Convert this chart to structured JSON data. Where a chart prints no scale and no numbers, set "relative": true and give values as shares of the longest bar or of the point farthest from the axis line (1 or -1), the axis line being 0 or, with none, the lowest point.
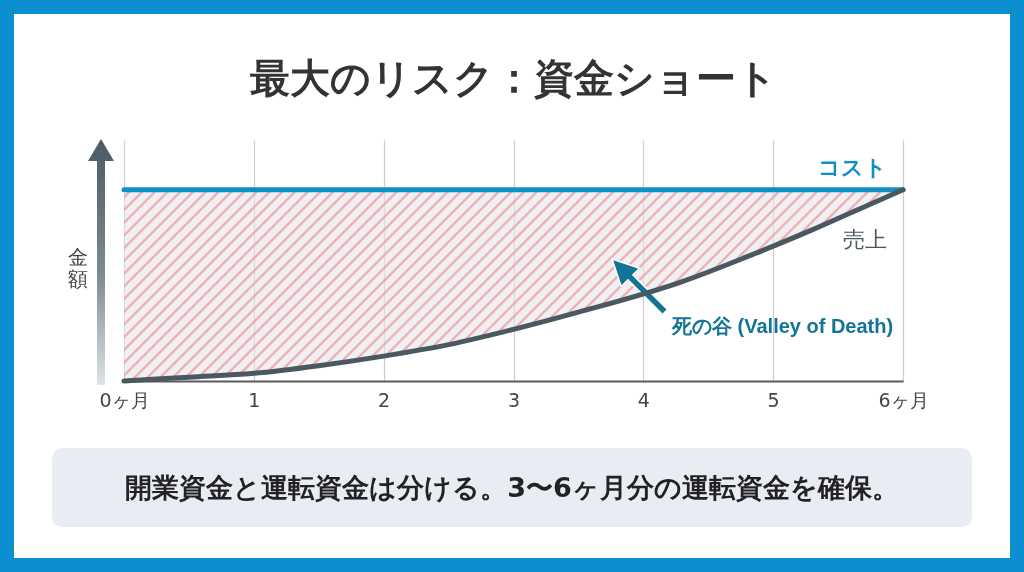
{
  "chart_data": {
    "type": "line",
    "title": "最大のリスク：資金ショート",
    "ylabel": "金額",
    "x": [
      0,
      0.5,
      1,
      1.5,
      2,
      2.5,
      3,
      3.5,
      4.3,
      4.8,
      5.3,
      5.8,
      6
    ],
    "xlim": [
      0,
      6
    ],
    "xticks": [
      {
        "value": 0,
        "label": "0ヶ月"
      },
      1,
      2,
      3,
      4,
      5,
      {
        "value": 6,
        "label": "6ヶ月"
      }
    ],
    "relative": true,
    "grid": "x",
    "series": [
      {
        "name": "コスト",
        "color": "#1190c6",
        "x": [
          0,
          6
        ],
        "values": [
          1,
          1
        ]
      },
      {
        "name": "売上",
        "color": "#4a5860",
        "values": [
          0,
          0.02,
          0.04,
          0.08,
          0.13,
          0.19,
          0.27,
          0.36,
          0.52,
          0.65,
          0.79,
          0.94,
          1
        ],
        "lower": [
          0,
          0.02,
          0.04,
          0.08,
          0.13,
          0.19,
          0.27,
          0.36,
          0.52,
          0.65,
          0.79,
          0.94,
          1
        ],
        "upper": [
          1,
          1,
          1,
          1,
          1,
          1,
          1,
          1,
          1,
          1,
          1,
          1,
          1
        ]
      }
    ],
    "annotations": [
      "死の谷 (Valley of Death)",
      "開業資金と運転資金は分ける。3〜6ヶ月分の運転資金を確保。"
    ]
  }
}
